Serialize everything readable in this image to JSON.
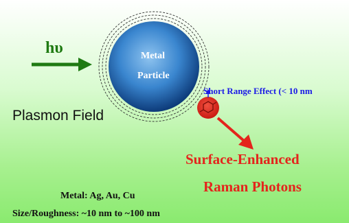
{
  "labels": {
    "photon": "hυ",
    "particle_line1": "Metal",
    "particle_line2": "Particle",
    "short_range": "Short Range Effect (< 10 nm",
    "plasmon_field": "Plasmon Field",
    "sers_line1": "Surface-Enhanced",
    "sers_line2": "Raman Photons",
    "metals": "Metal: Ag, Au, Cu",
    "size": "Size/Roughness: ~10 nm to ~100 nm"
  },
  "colors": {
    "photon_arrow": "#1f7a12",
    "particle_center": "#7fb6e8",
    "particle_edge": "#0d3b7a",
    "molecule": "#e4241c",
    "raman_arrow": "#e4241c",
    "short_range_text": "#1a1ae6",
    "sers_text": "#e4241c"
  }
}
